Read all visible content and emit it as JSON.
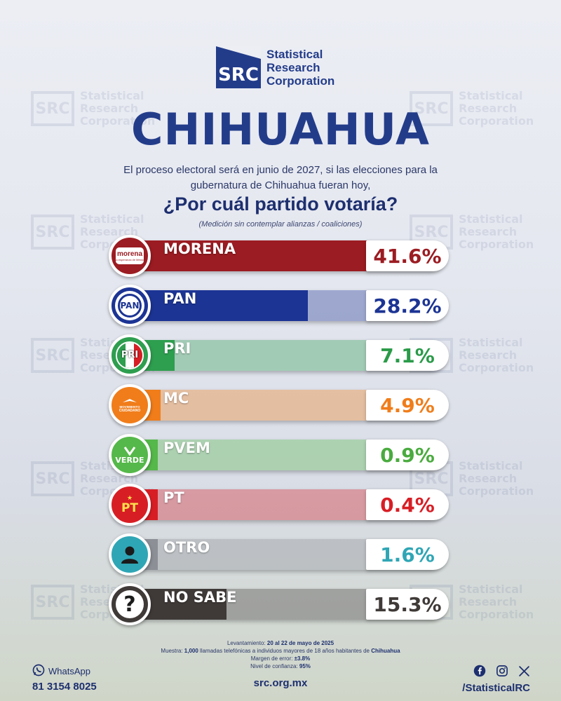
{
  "brand": {
    "logo_mark": "SRC",
    "name_line1": "Statistical",
    "name_line2": "Research",
    "name_line3": "Corporation"
  },
  "title": "CHIHUAHUA",
  "intro_line1": "El proceso electoral será en junio de 2027, si las elecciones para la",
  "intro_line2": "gubernatura de Chihuahua fueran hoy,",
  "question": "¿Por cuál partido votaría?",
  "note": "(Medición sin contemplar alianzas / coaliciones)",
  "chart_data": {
    "type": "bar",
    "categories": [
      "MORENA",
      "PAN",
      "PRI",
      "MC",
      "PVEM",
      "PT",
      "OTRO",
      "NO SABE"
    ],
    "values": [
      41.6,
      28.2,
      7.1,
      4.9,
      0.9,
      0.4,
      1.6,
      15.3
    ],
    "value_labels": [
      "41.6%",
      "28.2%",
      "7.1%",
      "4.9%",
      "0.9%",
      "0.4%",
      "1.6%",
      "15.3%"
    ],
    "colors": [
      "#9b1c22",
      "#1c3494",
      "#2e9e4f",
      "#f07d1a",
      "#55b84a",
      "#d81e25",
      "#8c8f96",
      "#3f3a38"
    ],
    "pct_colors": [
      "#9b1c22",
      "#1c3494",
      "#2a9a48",
      "#f07d1a",
      "#4aab3f",
      "#d81e25",
      "#2fa6b5",
      "#3f3a38"
    ],
    "badge_colors": [
      "#9b1c22",
      "#1c3494",
      "#2e9e4f",
      "#f07d1a",
      "#55b84a",
      "#d81e25",
      "#2fa6b5",
      "#3f3a38"
    ],
    "ylim": [
      0,
      50
    ],
    "badges": {
      "morena": {
        "word": "morena",
        "tagline": "La esperanza de México"
      },
      "pan": "PAN",
      "pri": "PRI",
      "mc": {
        "line1": "MOVIMIENTO",
        "line2": "CIUDADANO"
      },
      "pvem": "VERDE",
      "pt": "PT",
      "nosabe": "?"
    }
  },
  "footer": {
    "lev_label": "Levantamiento:",
    "lev_value": "20 al 22 de mayo de 2025",
    "muestra_label": "Muestra:",
    "muestra_n": "1,000",
    "muestra_text": "llamadas telefónicas a individuos mayores de 18 años habitantes de",
    "muestra_state": "Chihuahua",
    "error_label": "Margen de error:",
    "error_value": "±3.8%",
    "conf_label": "Nivel de confianza:",
    "conf_value": "95%",
    "whatsapp_label": "WhatsApp",
    "whatsapp_number": "81 3154 8025",
    "website": "src.org.mx",
    "social_handle": "/StatisticalRC",
    "social_icons": [
      "facebook-icon",
      "instagram-icon",
      "x-icon"
    ]
  }
}
